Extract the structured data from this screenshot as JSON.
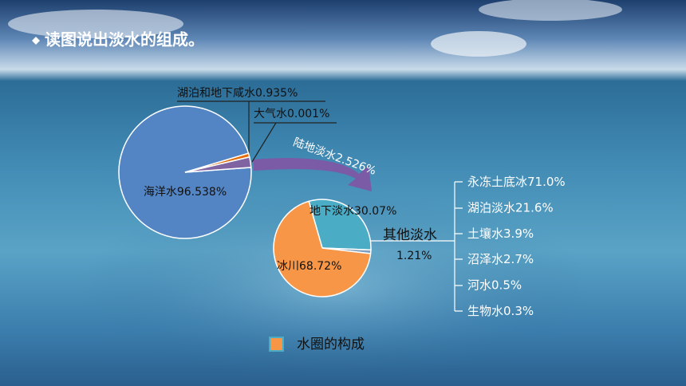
{
  "title": "读图说出淡水的组成。",
  "chart_data": [
    {
      "type": "pie",
      "categories": [
        "海洋水",
        "湖泊和地下咸水",
        "大气水",
        "陆地淡水"
      ],
      "values": [
        96.538,
        0.935,
        0.001,
        2.526
      ],
      "value_labels": [
        "96.538%",
        "0.935%",
        "0.001%",
        "2.526%"
      ],
      "colors": [
        "#5384c4",
        "#e46c0a",
        "#f2f2f2",
        "#8064a2"
      ]
    },
    {
      "type": "pie",
      "categories": [
        "地下淡水",
        "其他淡水",
        "冰川"
      ],
      "values": [
        30.07,
        1.21,
        68.72
      ],
      "value_labels": [
        "30.07%",
        "1.21%",
        "68.72%"
      ],
      "colors": [
        "#4bacc6",
        "#7f9fbf",
        "#f79646"
      ]
    }
  ],
  "other_freshwater": {
    "names": [
      "永冻土底冰",
      "湖泊淡水",
      "土壤水",
      "沼泽水",
      "河水",
      "生物水"
    ],
    "labels": [
      "71.0%",
      "21.6%",
      "3.9%",
      "2.7%",
      "0.5%",
      "0.3%"
    ]
  },
  "caption": {
    "text": "水圈的构成",
    "color": "#f79646",
    "border": "#4bacc6"
  }
}
